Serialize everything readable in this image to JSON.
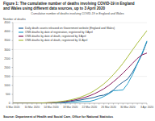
{
  "chart_data": {
    "type": "line",
    "title": "Figure 1: The cumulative number of deaths involving COVID-19 in England and Wales using different data sources, up to 3 April 2020",
    "subtitle": "Cumulative number of deaths involving COVID-19 in England and Wales",
    "y_label": "Number of deaths",
    "source": "Source: Department of Health and Social Care, Office for National Statistics",
    "categories": [
      "6 Mar 2020",
      null,
      null,
      null,
      "10 Mar 2020",
      null,
      null,
      null,
      "14 Mar 2020",
      null,
      null,
      null,
      "18 Mar 2020",
      null,
      null,
      null,
      "22 Mar 2020",
      null,
      null,
      null,
      "26 Mar 2020",
      null,
      null,
      null,
      "30 Mar 2020",
      null,
      null,
      null,
      "3 Apr 2020"
    ],
    "ylim": [
      0,
      4500
    ],
    "yticks": [
      0,
      500,
      1000,
      1500,
      2000,
      2500,
      3000,
      3500,
      4000,
      4500
    ],
    "grid": true,
    "legend": "upper left",
    "series": [
      {
        "name": "Daily death counts released on Government website (England and Wales)",
        "color": "#206095",
        "values": [
          1,
          2,
          2,
          3,
          6,
          7,
          9,
          10,
          21,
          34,
          53,
          69,
          103,
          140,
          174,
          228,
          275,
          329,
          410,
          453,
          565,
          740,
          986,
          1184,
          1361,
          1740,
          2211,
          2749,
          3432
        ]
      },
      {
        "name": "ONS deaths by date of registration, registered by 3 April",
        "color": "#27a0cc",
        "values": [
          1,
          1,
          1,
          2,
          3,
          4,
          5,
          8,
          8,
          8,
          15,
          25,
          40,
          62,
          90,
          100,
          104,
          170,
          260,
          380,
          520,
          700,
          720,
          740,
          1100,
          1600,
          2200,
          2800,
          3475
        ]
      },
      {
        "name": "ONS deaths by date of death, registered by 3 April",
        "color": "#871a5b",
        "values": [
          1,
          2,
          3,
          4,
          6,
          10,
          15,
          23,
          34,
          50,
          72,
          102,
          140,
          190,
          250,
          325,
          415,
          525,
          660,
          810,
          990,
          1200,
          1430,
          1680,
          1950,
          2230,
          2500,
          2700,
          2800
        ]
      },
      {
        "name": "ONS deaths by date of death, registered by 11 April",
        "color": "#a8bd3a",
        "values": [
          1,
          2,
          3,
          5,
          8,
          13,
          20,
          30,
          45,
          65,
          95,
          135,
          185,
          250,
          330,
          430,
          550,
          700,
          880,
          1080,
          1320,
          1600,
          1900,
          2230,
          2600,
          2980,
          3350,
          3700,
          4050
        ]
      }
    ]
  }
}
